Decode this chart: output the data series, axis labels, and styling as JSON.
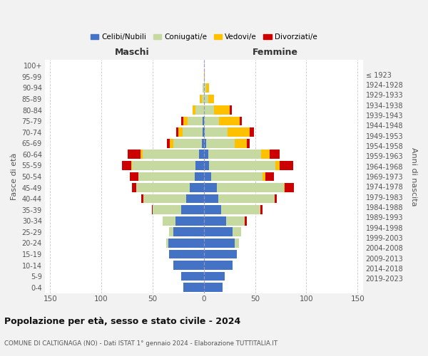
{
  "age_groups": [
    "0-4",
    "5-9",
    "10-14",
    "15-19",
    "20-24",
    "25-29",
    "30-34",
    "35-39",
    "40-44",
    "45-49",
    "50-54",
    "55-59",
    "60-64",
    "65-69",
    "70-74",
    "75-79",
    "80-84",
    "85-89",
    "90-94",
    "95-99",
    "100+"
  ],
  "birth_years": [
    "2019-2023",
    "2014-2018",
    "2009-2013",
    "2004-2008",
    "1999-2003",
    "1994-1998",
    "1989-1993",
    "1984-1988",
    "1979-1983",
    "1974-1978",
    "1969-1973",
    "1964-1968",
    "1959-1963",
    "1954-1958",
    "1949-1953",
    "1944-1948",
    "1939-1943",
    "1934-1938",
    "1929-1933",
    "1924-1928",
    "≤ 1923"
  ],
  "males": {
    "celibi": [
      20,
      22,
      30,
      34,
      35,
      30,
      28,
      22,
      17,
      14,
      9,
      8,
      5,
      2,
      1,
      1,
      0,
      0,
      0,
      0,
      0
    ],
    "coniugati": [
      0,
      0,
      0,
      0,
      2,
      4,
      12,
      28,
      42,
      52,
      55,
      62,
      55,
      28,
      20,
      15,
      8,
      2,
      1,
      0,
      0
    ],
    "vedovi": [
      0,
      0,
      0,
      0,
      0,
      0,
      0,
      0,
      0,
      0,
      0,
      1,
      2,
      3,
      4,
      4,
      3,
      2,
      0,
      0,
      0
    ],
    "divorziati": [
      0,
      0,
      0,
      0,
      0,
      0,
      0,
      1,
      2,
      4,
      8,
      9,
      12,
      3,
      2,
      2,
      0,
      0,
      0,
      0,
      0
    ]
  },
  "females": {
    "nubili": [
      18,
      20,
      28,
      32,
      30,
      28,
      22,
      17,
      14,
      13,
      7,
      5,
      4,
      2,
      1,
      0,
      0,
      0,
      0,
      0,
      0
    ],
    "coniugate": [
      0,
      0,
      0,
      0,
      4,
      8,
      18,
      38,
      55,
      65,
      50,
      65,
      52,
      28,
      22,
      15,
      10,
      4,
      2,
      0,
      0
    ],
    "vedove": [
      0,
      0,
      0,
      0,
      0,
      0,
      0,
      0,
      0,
      1,
      3,
      4,
      8,
      12,
      22,
      20,
      15,
      6,
      3,
      1,
      0
    ],
    "divorziate": [
      0,
      0,
      0,
      0,
      0,
      0,
      2,
      2,
      2,
      9,
      8,
      13,
      10,
      3,
      4,
      2,
      2,
      0,
      0,
      0,
      0
    ]
  },
  "color_celibi": "#4472c4",
  "color_coniugati": "#c5d9a0",
  "color_vedovi": "#ffc000",
  "color_divorziati": "#cc0000",
  "xlim": 155,
  "title": "Popolazione per età, sesso e stato civile - 2024",
  "subtitle": "COMUNE DI CALTIGNAGA (NO) - Dati ISTAT 1° gennaio 2024 - Elaborazione TUTTITALIA.IT",
  "xlabel_left": "Maschi",
  "xlabel_right": "Femmine",
  "ylabel_left": "Fasce di età",
  "ylabel_right": "Anni di nascita",
  "legend_labels": [
    "Celibi/Nubili",
    "Coniugati/e",
    "Vedovi/e",
    "Divorziati/e"
  ],
  "bg_color": "#f2f2f2",
  "plot_bg_color": "#ffffff"
}
